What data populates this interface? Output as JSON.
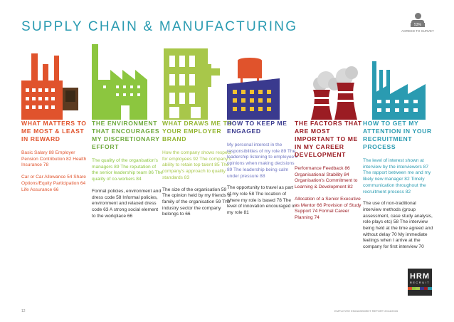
{
  "header": {
    "title": "SUPPLY CHAIN & MANUFACTURING",
    "badge_pct": "53%",
    "badge_label": "AGREED TO SURVEY"
  },
  "columns": [
    {
      "heading": "WHAT MATTERS TO ME MOST & LEAST IN REWARD",
      "p1": "Basic Salary 88 Employer Pension Contribution 82 Health Insurance 78",
      "p2": "Car or Car Allowance 54 Share Options/Equity Participation 64 Life Assurance 66"
    },
    {
      "heading": "THE ENVIRONMENT THAT ENCOURAGES MY DISCRETIONARY EFFORT",
      "p1": "The quality of the organisation's managers 89 The reputation of the senior leadership team 86 The quality of co-workers 84",
      "p2": "Formal policies, environment and dress code 58 Informal policies, environment and relaxed dress code 63 A strong social element to the workplace 66"
    },
    {
      "heading": "WHAT DRAWS ME TO YOUR EMPLOYER BRAND",
      "p1": "How the company shows respect for employees 92 The company's ability to retain top talent 85 The company's approach to quality standards 83",
      "p2": "The size of the organisation 59 The opinion held by my friends or family of the organisation 59 The industry sector the company belongs to 66"
    },
    {
      "heading": "HOW TO KEEP ME ENGAGED",
      "p1": "My personal interest in the responsibilities of my role 89 The leadership listening to employee's opinions when making decisions 89 The leadership being calm under pressure 88",
      "p2": "The opportunity to travel as part of my role 58 The location of where my role is based 78 The level of innovation encouraged in my role 81"
    },
    {
      "heading": "THE FACTORS THAT ARE MOST IMPORTANT TO ME IN MY CAREER DEVELOPMENT",
      "p1": "Performance Feedback 86 Organisational Stability 84 Organisation's Commitment to Learning & Development 82",
      "p2": "Allocation of a Senior Executive as Mentor 66 Provision of Study Support 74 Formal Career Planning 74"
    },
    {
      "heading": "HOW TO GET MY ATTENTION IN YOUR RECRUITMENT PROCESS",
      "p1": "The level of interest shown at interview by the interviewers 87 The rapport between me and my likely new manager 82 Timely communication throughout the recruitment process 82",
      "p2": "The use of non-traditional interview methods (group assessment, case study analysis, role plays etc) 58 The interview being held at the time agreed and without delay 70 My immediate feelings when I arrive at the company for first interview 70"
    }
  ],
  "footer": {
    "page": "12",
    "text": "EMPLOYEE ENGAGEMENT REPORT 2014/2015",
    "brand_big": "HRM",
    "brand_small": "RECRUIT"
  },
  "colors": {
    "teal": "#2a9bb1",
    "orange": "#e0532c",
    "green": "#6ea93d",
    "lime": "#93b531",
    "navy": "#3a3a8e",
    "red": "#9b1c23"
  }
}
